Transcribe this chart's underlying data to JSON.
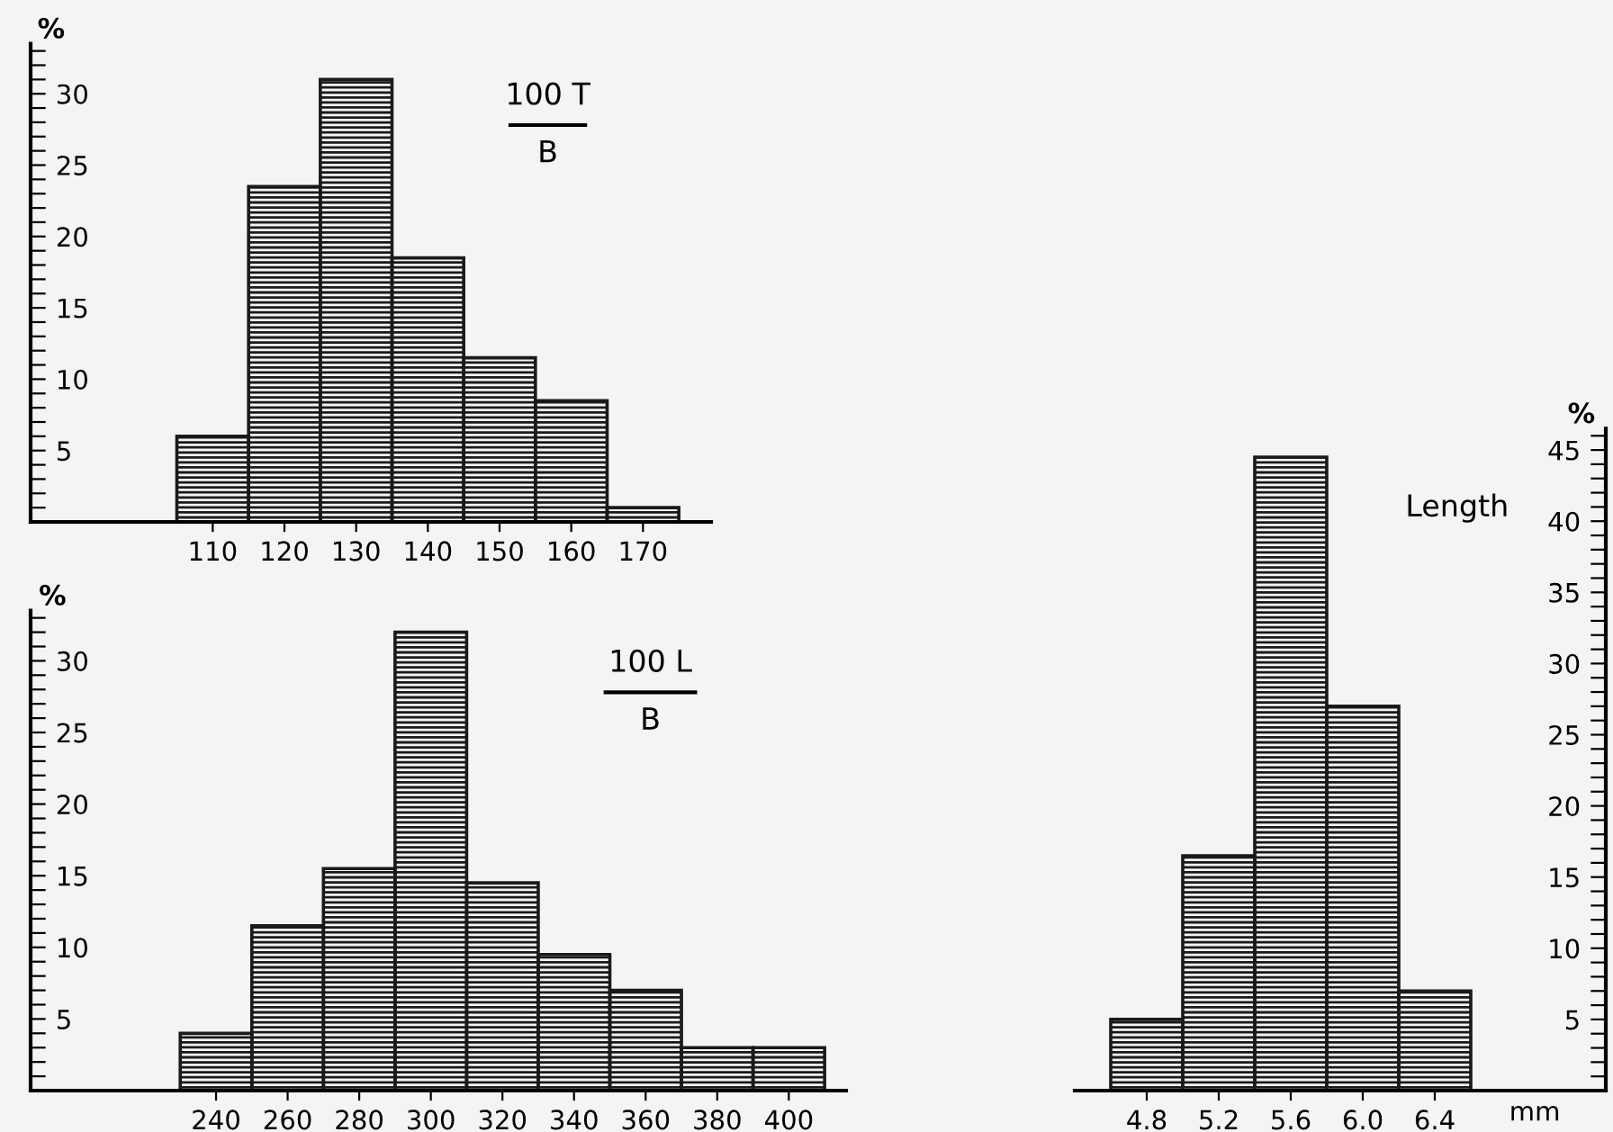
{
  "chart_data": [
    {
      "type": "histogram",
      "annotations": [
        "100 T",
        "B"
      ],
      "ylabel": "%",
      "bins": [
        105,
        115,
        125,
        135,
        145,
        155,
        165,
        175
      ],
      "values": [
        6,
        23.5,
        31,
        18.5,
        11.5,
        8.5,
        1
      ],
      "color": "#1a1a1a",
      "xlim": [
        84.6,
        179.5
      ],
      "xticks": [
        110,
        120,
        130,
        140,
        150,
        160,
        170
      ],
      "ylim": [
        0,
        33.5
      ],
      "yticks": [
        {
          "value": 1,
          "label": null
        },
        {
          "value": 2,
          "label": null
        },
        {
          "value": 3,
          "label": null
        },
        {
          "value": 4,
          "label": null
        },
        5,
        {
          "value": 6,
          "label": null
        },
        {
          "value": 7,
          "label": null
        },
        {
          "value": 8,
          "label": null
        },
        {
          "value": 9,
          "label": null
        },
        10,
        {
          "value": 11,
          "label": null
        },
        {
          "value": 12,
          "label": null
        },
        {
          "value": 13,
          "label": null
        },
        {
          "value": 14,
          "label": null
        },
        15,
        {
          "value": 16,
          "label": null
        },
        {
          "value": 17,
          "label": null
        },
        {
          "value": 18,
          "label": null
        },
        {
          "value": 19,
          "label": null
        },
        20,
        {
          "value": 21,
          "label": null
        },
        {
          "value": 22,
          "label": null
        },
        {
          "value": 23,
          "label": null
        },
        {
          "value": 24,
          "label": null
        },
        25,
        {
          "value": 26,
          "label": null
        },
        {
          "value": 27,
          "label": null
        },
        {
          "value": 28,
          "label": null
        },
        {
          "value": 29,
          "label": null
        },
        30,
        {
          "value": 31,
          "label": null
        },
        {
          "value": 32,
          "label": null
        },
        {
          "value": 33,
          "label": null
        }
      ],
      "grid": false
    },
    {
      "type": "histogram",
      "annotations": [
        "100 L",
        "B"
      ],
      "ylabel": "%",
      "bins": [
        230,
        250,
        270,
        290,
        310,
        330,
        350,
        370,
        390,
        410
      ],
      "values": [
        4,
        11.5,
        15.5,
        32,
        14.5,
        9.5,
        7,
        3,
        3
      ],
      "color": "#1a1a1a",
      "xlim": [
        188.2,
        416
      ],
      "xticks": [
        240,
        260,
        280,
        300,
        320,
        340,
        360,
        380,
        400
      ],
      "ylim": [
        0,
        33.5
      ],
      "yticks": [
        {
          "value": 1,
          "label": null
        },
        {
          "value": 2,
          "label": null
        },
        {
          "value": 3,
          "label": null
        },
        {
          "value": 4,
          "label": null
        },
        5,
        {
          "value": 6,
          "label": null
        },
        {
          "value": 7,
          "label": null
        },
        {
          "value": 8,
          "label": null
        },
        {
          "value": 9,
          "label": null
        },
        10,
        {
          "value": 11,
          "label": null
        },
        {
          "value": 12,
          "label": null
        },
        {
          "value": 13,
          "label": null
        },
        {
          "value": 14,
          "label": null
        },
        15,
        {
          "value": 16,
          "label": null
        },
        {
          "value": 17,
          "label": null
        },
        {
          "value": 18,
          "label": null
        },
        {
          "value": 19,
          "label": null
        },
        20,
        {
          "value": 21,
          "label": null
        },
        {
          "value": 22,
          "label": null
        },
        {
          "value": 23,
          "label": null
        },
        {
          "value": 24,
          "label": null
        },
        25,
        {
          "value": 26,
          "label": null
        },
        {
          "value": 27,
          "label": null
        },
        {
          "value": 28,
          "label": null
        },
        {
          "value": 29,
          "label": null
        },
        30,
        {
          "value": 31,
          "label": null
        },
        {
          "value": 32,
          "label": null
        },
        {
          "value": 33,
          "label": null
        }
      ],
      "grid": false
    },
    {
      "type": "histogram",
      "title": "Length",
      "ylabel": "%",
      "xlabel": "mm",
      "bins": [
        4.6,
        5.0,
        5.4,
        5.8,
        6.2,
        6.6
      ],
      "values": [
        5,
        16.5,
        44.5,
        27,
        7
      ],
      "color": "#1a1a1a",
      "xlim": [
        4.4,
        7.35
      ],
      "xticks": [
        {
          "value": 4.8,
          "label": "4.8"
        },
        {
          "value": 5.2,
          "label": "5.2"
        },
        {
          "value": 5.6,
          "label": "5.6"
        },
        {
          "value": 6.0,
          "label": "6.0"
        },
        {
          "value": 6.4,
          "label": "6.4"
        }
      ],
      "ylim": [
        0,
        46.5
      ],
      "yticks": [
        {
          "value": 1,
          "label": null
        },
        {
          "value": 2,
          "label": null
        },
        {
          "value": 3,
          "label": null
        },
        {
          "value": 4,
          "label": null
        },
        5,
        {
          "value": 6,
          "label": null
        },
        {
          "value": 7,
          "label": null
        },
        {
          "value": 8,
          "label": null
        },
        {
          "value": 9,
          "label": null
        },
        10,
        {
          "value": 11,
          "label": null
        },
        {
          "value": 12,
          "label": null
        },
        {
          "value": 13,
          "label": null
        },
        {
          "value": 14,
          "label": null
        },
        15,
        {
          "value": 16,
          "label": null
        },
        {
          "value": 17,
          "label": null
        },
        {
          "value": 18,
          "label": null
        },
        {
          "value": 19,
          "label": null
        },
        20,
        {
          "value": 21,
          "label": null
        },
        {
          "value": 22,
          "label": null
        },
        {
          "value": 23,
          "label": null
        },
        {
          "value": 24,
          "label": null
        },
        25,
        {
          "value": 26,
          "label": null
        },
        {
          "value": 27,
          "label": null
        },
        {
          "value": 28,
          "label": null
        },
        {
          "value": 29,
          "label": null
        },
        30,
        {
          "value": 31,
          "label": null
        },
        {
          "value": 32,
          "label": null
        },
        {
          "value": 33,
          "label": null
        },
        {
          "value": 34,
          "label": null
        },
        35,
        {
          "value": 36,
          "label": null
        },
        {
          "value": 37,
          "label": null
        },
        {
          "value": 38,
          "label": null
        },
        {
          "value": 39,
          "label": null
        },
        40,
        {
          "value": 41,
          "label": null
        },
        {
          "value": 42,
          "label": null
        },
        {
          "value": 43,
          "label": null
        },
        {
          "value": 44,
          "label": null
        },
        45,
        {
          "value": 46,
          "label": null
        }
      ],
      "grid": false
    }
  ]
}
